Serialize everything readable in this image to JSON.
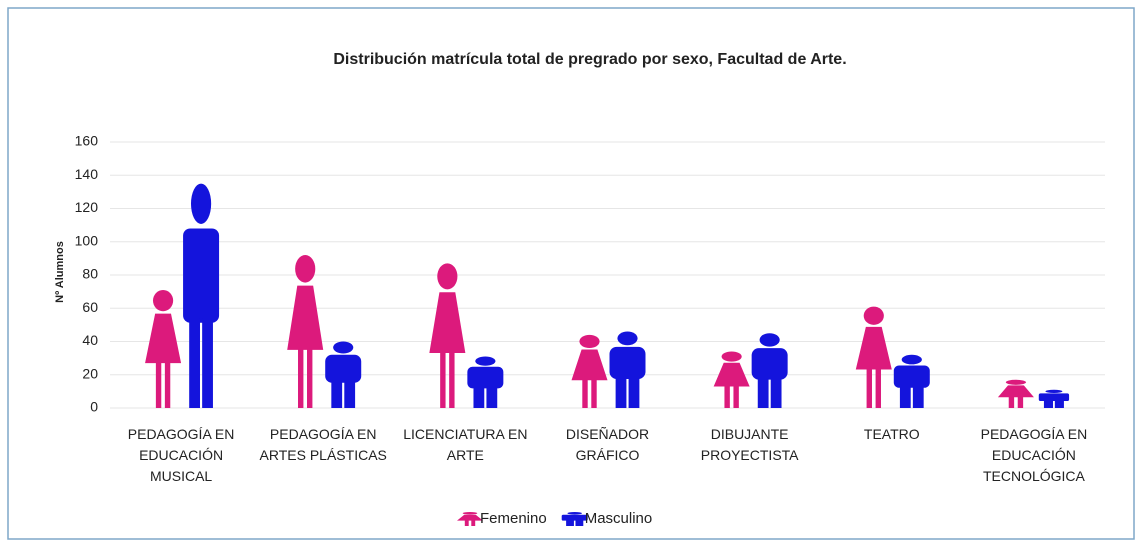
{
  "chart_data": {
    "type": "pictograph",
    "title": "Distribución matrícula total de pregrado por sexo, Facultad de Arte.",
    "y_label": "Nº Alumnos",
    "categories": [
      "PEDAGOGÍA EN\nEDUCACIÓN\nMUSICAL",
      "PEDAGOGÍA EN\nARTES PLÁSTICAS",
      "LICENCIATURA EN\nARTE",
      "DISEÑADOR\nGRÁFICO",
      "DIBUJANTE\nPROYECTISTA",
      "TEATRO",
      "PEDAGOGÍA EN\nEDUCACIÓN\nTECNOLÓGICA"
    ],
    "series": [
      {
        "name": "Femenino",
        "color": "#dc1a7c",
        "icon": "female",
        "values": [
          71,
          92,
          87,
          44,
          34,
          61,
          17
        ]
      },
      {
        "name": "Masculino",
        "color": "#1414dc",
        "icon": "male",
        "values": [
          135,
          40,
          31,
          46,
          45,
          32,
          11
        ]
      }
    ],
    "ylim": [
      0,
      160
    ],
    "yticks": [
      0,
      20,
      40,
      60,
      80,
      100,
      120,
      140,
      160
    ],
    "grid": true,
    "legend": "bottom"
  }
}
